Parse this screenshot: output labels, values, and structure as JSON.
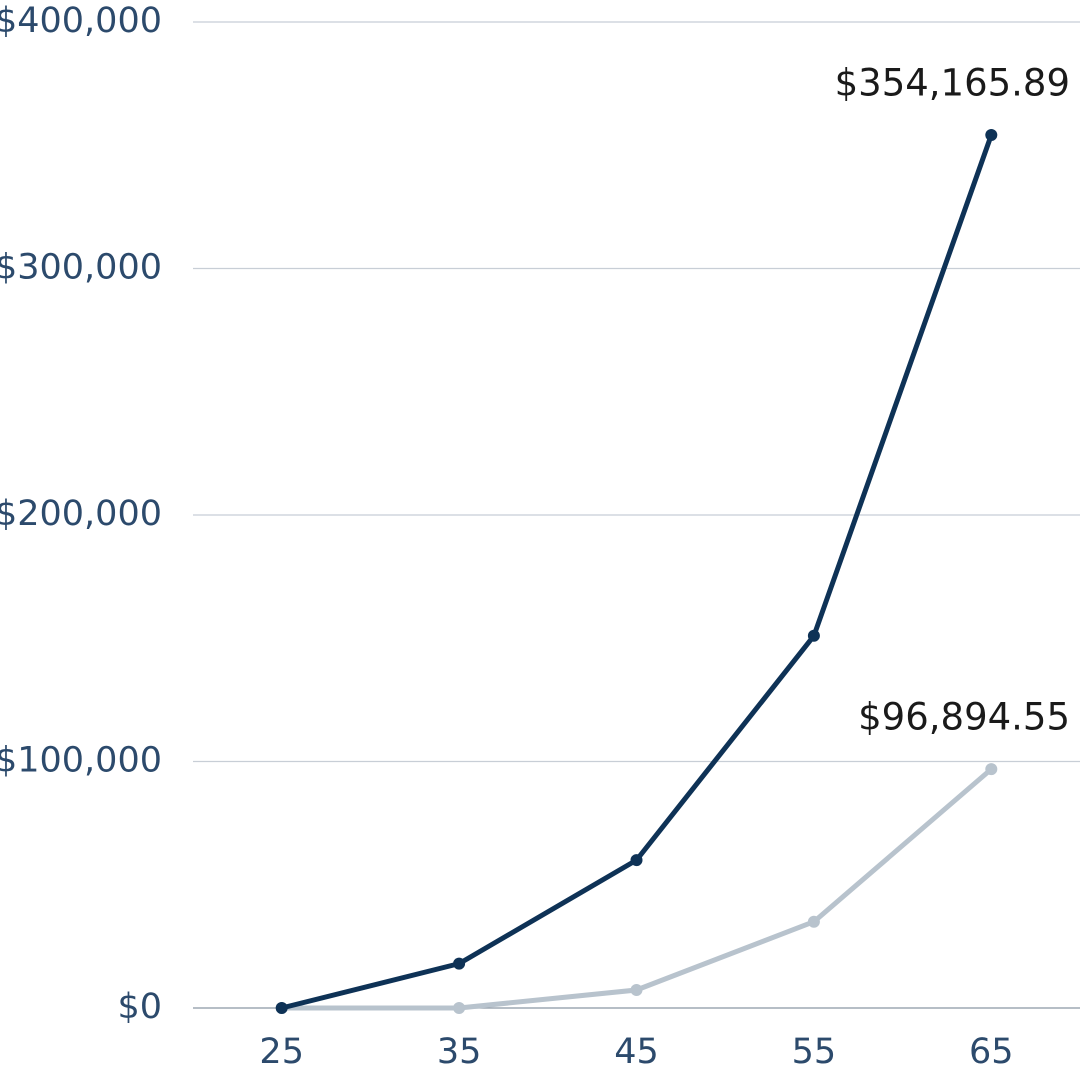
{
  "chart_data": {
    "type": "line",
    "x": [
      25,
      35,
      45,
      55,
      65
    ],
    "xlim": [
      20,
      70
    ],
    "xticks": [
      25,
      35,
      45,
      55,
      65
    ],
    "ylim": [
      0,
      400000
    ],
    "yticks": [
      {
        "value": 0,
        "label": "$0"
      },
      {
        "value": 100000,
        "label": "$100,000"
      },
      {
        "value": 200000,
        "label": "$200,000"
      },
      {
        "value": 300000,
        "label": "$300,000"
      },
      {
        "value": 400000,
        "label": "$400,000"
      }
    ],
    "grid": true,
    "series": [
      {
        "color": "#0e3256",
        "values": [
          0,
          18000,
          60000,
          151000,
          354165.89
        ],
        "value_labels": [
          null,
          null,
          null,
          null,
          "$354,165.89"
        ]
      },
      {
        "color": "#b8c3cd",
        "values": [
          0,
          0,
          7300,
          35000,
          96894.55
        ],
        "value_labels": [
          null,
          null,
          null,
          null,
          "$96,894.55"
        ]
      }
    ]
  }
}
